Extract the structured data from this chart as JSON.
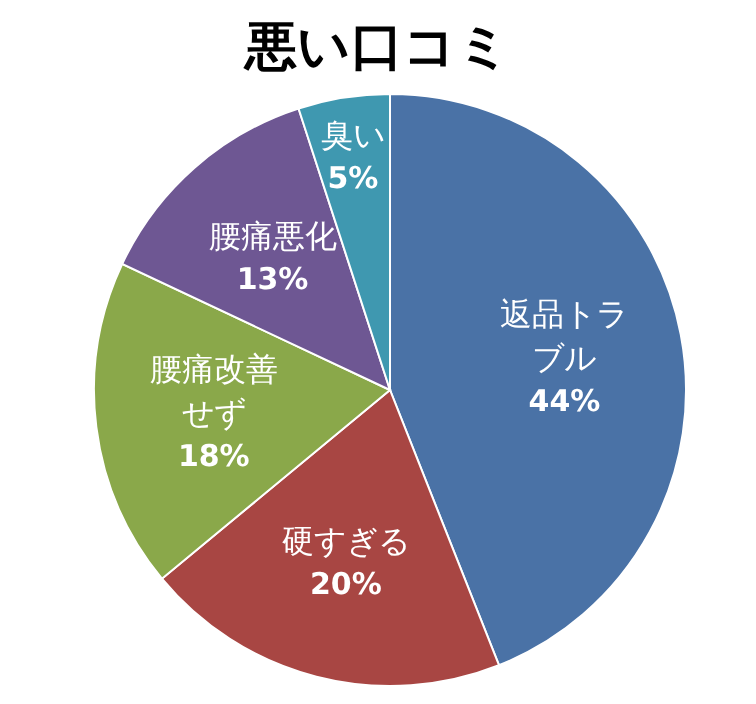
{
  "chart_data": {
    "type": "pie",
    "title": "悪い口コミ",
    "categories": [
      "返品トラブル",
      "硬すぎる",
      "腰痛改善せず",
      "腰痛悪化",
      "臭い"
    ],
    "values": [
      44,
      20,
      18,
      13,
      5
    ],
    "value_labels": [
      "44%",
      "20%",
      "18%",
      "13%",
      "5%"
    ],
    "colors": [
      "#4a72a6",
      "#a84643",
      "#8aa84a",
      "#6e5793",
      "#3f98b0"
    ]
  }
}
